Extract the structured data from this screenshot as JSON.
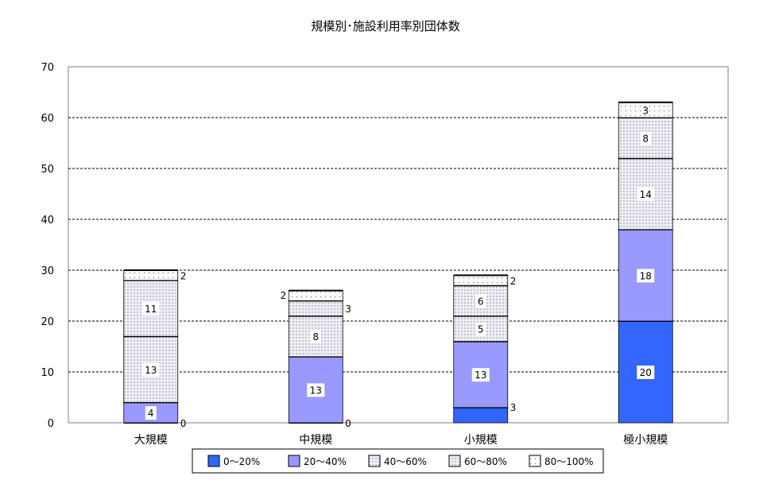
{
  "chart_data": {
    "type": "bar",
    "stacked": true,
    "title": "規模別･施設利用率別団体数",
    "categories": [
      "大規模",
      "中規模",
      "小規模",
      "極小規模"
    ],
    "series": [
      {
        "name": "0～20%",
        "values": [
          0,
          0,
          3,
          20
        ],
        "color": "#3366ff"
      },
      {
        "name": "20～40%",
        "values": [
          4,
          13,
          13,
          18
        ],
        "color": "#9999ff"
      },
      {
        "name": "40～60%",
        "values": [
          13,
          8,
          5,
          14
        ],
        "color": "#d6d6f0"
      },
      {
        "name": "60～80%",
        "values": [
          11,
          3,
          6,
          8
        ],
        "color": "#ececf4"
      },
      {
        "name": "80～100%",
        "values": [
          2,
          2,
          2,
          3
        ],
        "color": "#f7f7fa"
      }
    ],
    "ylim": [
      0,
      70
    ],
    "yticks": [
      0,
      10,
      20,
      30,
      40,
      50,
      60,
      70
    ],
    "grid": true,
    "legend": "bottom"
  }
}
